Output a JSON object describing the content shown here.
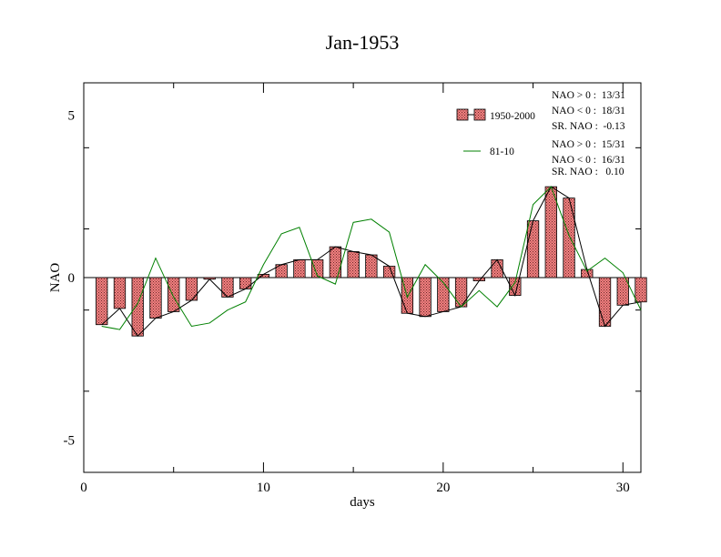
{
  "chart_data": {
    "type": "bar",
    "title": "Jan-1953",
    "xlabel": "days",
    "ylabel": "NAO",
    "xlim": [
      0,
      31
    ],
    "ylim": [
      -6,
      6
    ],
    "x_ticks": [
      0,
      10,
      20,
      30
    ],
    "y_ticks": [
      5,
      0,
      -5
    ],
    "x_tick_labels": [
      "0",
      "10",
      "20",
      "30"
    ],
    "y_tick_labels": [
      "5",
      "0",
      "-5"
    ],
    "days": [
      1,
      2,
      3,
      4,
      5,
      6,
      7,
      8,
      9,
      10,
      11,
      12,
      13,
      14,
      15,
      16,
      17,
      18,
      19,
      20,
      21,
      22,
      23,
      24,
      25,
      26,
      27,
      28,
      29,
      30,
      31
    ],
    "series": [
      {
        "name": "1950-2000",
        "style": "bars+line",
        "bar_color": "#f08080",
        "line_color": "#000000",
        "values": [
          -1.45,
          -0.95,
          -1.8,
          -1.25,
          -1.05,
          -0.7,
          -0.05,
          -0.6,
          -0.35,
          0.1,
          0.4,
          0.55,
          0.55,
          0.95,
          0.8,
          0.7,
          0.35,
          -1.1,
          -1.2,
          -1.05,
          -0.9,
          -0.1,
          0.55,
          -0.55,
          1.75,
          2.8,
          2.45,
          0.25,
          -1.5,
          -0.85,
          -0.75
        ]
      },
      {
        "name": "81-10",
        "style": "line",
        "line_color": "#008000",
        "values": [
          -1.5,
          -1.6,
          -0.8,
          0.6,
          -0.6,
          -1.5,
          -1.4,
          -1.0,
          -0.75,
          0.4,
          1.35,
          1.55,
          0.05,
          -0.2,
          1.7,
          1.8,
          1.4,
          -0.6,
          0.4,
          -0.15,
          -0.9,
          -0.4,
          -0.9,
          -0.15,
          2.25,
          2.8,
          1.3,
          0.2,
          0.6,
          0.15,
          -1.0
        ]
      }
    ],
    "legend_position": "top-right",
    "stats": [
      [
        "NAO > 0 :  13/31",
        "NAO < 0 :  18/31",
        "SR. NAO :  -0.13"
      ],
      [
        "NAO > 0 :  15/31",
        "NAO < 0 :  16/31",
        "SR. NAO :   0.10"
      ]
    ]
  }
}
